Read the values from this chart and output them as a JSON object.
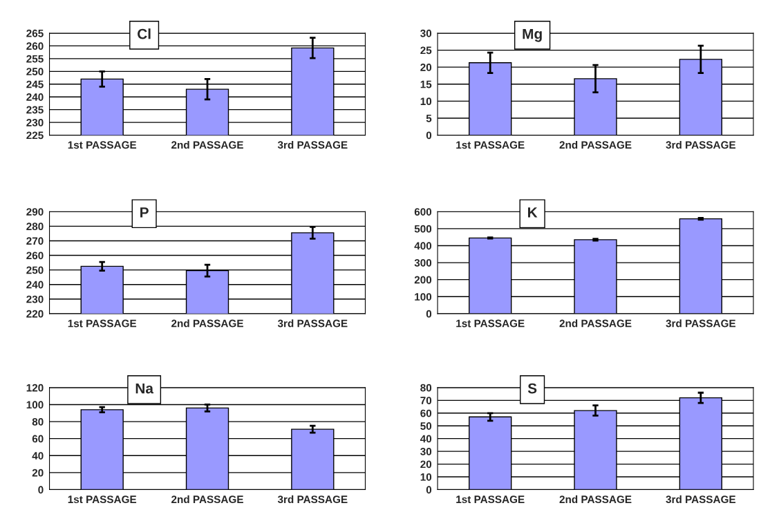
{
  "chart_data": [
    {
      "type": "bar",
      "title": "Cl",
      "categories": [
        "1st PASSAGE",
        "2nd PASSAGE",
        "3rd PASSAGE"
      ],
      "values": [
        247,
        243,
        259.2
      ],
      "errors": [
        3,
        4,
        4
      ],
      "color": "#9999ff",
      "ylim": [
        225,
        265
      ],
      "yticks": [
        225,
        230,
        235,
        240,
        245,
        250,
        255,
        260,
        265
      ],
      "grid": "y"
    },
    {
      "type": "bar",
      "title": "Mg",
      "categories": [
        "1st PASSAGE",
        "2nd PASSAGE",
        "3rd PASSAGE"
      ],
      "values": [
        21.3,
        16.6,
        22.3
      ],
      "errors": [
        3,
        4,
        4
      ],
      "color": "#9999ff",
      "ylim": [
        0,
        30
      ],
      "yticks": [
        0,
        5,
        10,
        15,
        20,
        25,
        30
      ],
      "grid": "y"
    },
    {
      "type": "bar",
      "title": "P",
      "categories": [
        "1st PASSAGE",
        "2nd PASSAGE",
        "3rd PASSAGE"
      ],
      "values": [
        252.5,
        249.5,
        275.5
      ],
      "errors": [
        3,
        4,
        4
      ],
      "color": "#9999ff",
      "ylim": [
        220,
        290
      ],
      "yticks": [
        220,
        230,
        240,
        250,
        260,
        270,
        280,
        290
      ],
      "grid": "y"
    },
    {
      "type": "bar",
      "title": "K",
      "categories": [
        "1st PASSAGE",
        "2nd PASSAGE",
        "3rd PASSAGE"
      ],
      "values": [
        445,
        435,
        558
      ],
      "errors": [
        3,
        5,
        5
      ],
      "color": "#9999ff",
      "ylim": [
        0,
        600
      ],
      "yticks": [
        0,
        100,
        200,
        300,
        400,
        500,
        600
      ],
      "grid": "y"
    },
    {
      "type": "bar",
      "title": "Na",
      "categories": [
        "1st PASSAGE",
        "2nd PASSAGE",
        "3rd PASSAGE"
      ],
      "values": [
        94,
        96,
        71
      ],
      "errors": [
        3,
        4,
        4
      ],
      "color": "#9999ff",
      "ylim": [
        0,
        120
      ],
      "yticks": [
        0,
        20,
        40,
        60,
        80,
        100,
        120
      ],
      "grid": "y"
    },
    {
      "type": "bar",
      "title": "S",
      "categories": [
        "1st PASSAGE",
        "2nd PASSAGE",
        "3rd PASSAGE"
      ],
      "values": [
        57,
        62,
        72
      ],
      "errors": [
        3,
        4,
        4
      ],
      "color": "#9999ff",
      "ylim": [
        0,
        80
      ],
      "yticks": [
        0,
        10,
        20,
        30,
        40,
        50,
        60,
        70,
        80
      ],
      "grid": "y"
    }
  ]
}
